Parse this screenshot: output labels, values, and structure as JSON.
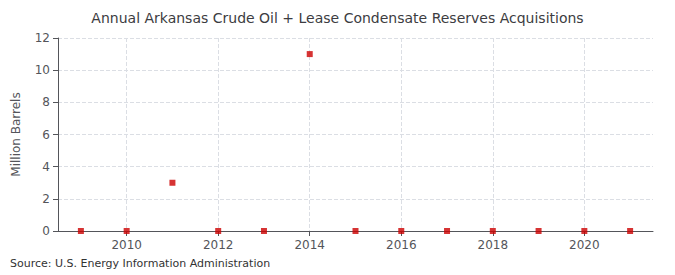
{
  "chart_data": {
    "type": "scatter",
    "title": "Annual Arkansas Crude Oil + Lease Condensate Reserves Acquisitions",
    "ylabel": "Million Barrels",
    "annotations": [
      "Source: U.S. Energy Information Administration"
    ],
    "x": [
      2009,
      2010,
      2011,
      2012,
      2013,
      2014,
      2015,
      2016,
      2017,
      2018,
      2019,
      2020,
      2021
    ],
    "values": [
      0.0,
      0.0,
      3.0,
      0.0,
      0.0,
      11.0,
      0.0,
      0.0,
      0.0,
      0.0,
      0.0,
      0.0,
      0.0
    ],
    "color": "#cc0000",
    "marker": "square",
    "xlim": [
      2008.5,
      2021.5
    ],
    "xticks": [
      2010,
      2012,
      2014,
      2016,
      2018,
      2020
    ],
    "ylim": [
      0,
      12
    ],
    "yticks": [
      0,
      2,
      4,
      6,
      8,
      10,
      12
    ],
    "grid": true
  }
}
